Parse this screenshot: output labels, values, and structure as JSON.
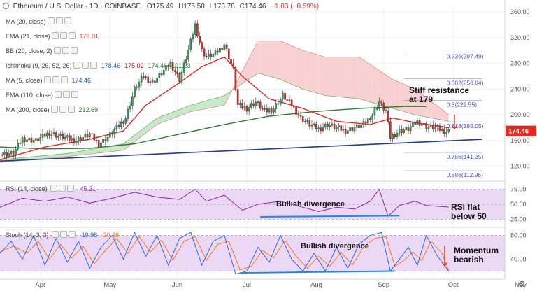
{
  "chart_data": {
    "type": "line",
    "title": "Ethereum / U.S. Dollar",
    "interval": "1D",
    "exchange": "COINBASE",
    "ohlc": {
      "open": "O175.49",
      "high": "H175.50",
      "low": "L173.78",
      "close": "C174.46",
      "change": "−1.03 (−0.59%)"
    },
    "current_price": "174.46",
    "price_axis": {
      "ticks": [
        120,
        160,
        200,
        240,
        280,
        320,
        360
      ],
      "range": [
        100,
        370
      ]
    },
    "rsi_axis": {
      "ticks": [
        25,
        50,
        75
      ],
      "range": [
        15,
        85
      ]
    },
    "stoch_axis": {
      "ticks": [
        40,
        80
      ],
      "range": [
        10,
        90
      ]
    },
    "x_axis": {
      "labels": [
        "Apr",
        "May",
        "Jun",
        "Jul",
        "Aug",
        "Sep",
        "Oct",
        "Nov"
      ]
    },
    "fib_levels": [
      {
        "ratio": "0.236",
        "value": 297.49
      },
      {
        "ratio": "0.382",
        "value": 256.04
      },
      {
        "ratio": "0.5",
        "value": 222.55
      },
      {
        "ratio": "0.618",
        "value": 189.05
      },
      {
        "ratio": "0.786",
        "value": 141.35
      },
      {
        "ratio": "0.886",
        "value": 112.96
      }
    ],
    "close_series": [
      {
        "t": 0,
        "v": 138
      },
      {
        "t": 6,
        "v": 140
      },
      {
        "t": 10,
        "v": 163
      },
      {
        "t": 16,
        "v": 160
      },
      {
        "t": 22,
        "v": 172
      },
      {
        "t": 28,
        "v": 165
      },
      {
        "t": 34,
        "v": 160
      },
      {
        "t": 40,
        "v": 170
      },
      {
        "t": 44,
        "v": 155
      },
      {
        "t": 48,
        "v": 165
      },
      {
        "t": 52,
        "v": 180
      },
      {
        "t": 56,
        "v": 195
      },
      {
        "t": 60,
        "v": 240
      },
      {
        "t": 64,
        "v": 260
      },
      {
        "t": 68,
        "v": 250
      },
      {
        "t": 72,
        "v": 265
      },
      {
        "t": 76,
        "v": 280
      },
      {
        "t": 80,
        "v": 255
      },
      {
        "t": 84,
        "v": 300
      },
      {
        "t": 87,
        "v": 340
      },
      {
        "t": 90,
        "v": 300
      },
      {
        "t": 92,
        "v": 290
      },
      {
        "t": 96,
        "v": 295
      },
      {
        "t": 100,
        "v": 310
      },
      {
        "t": 104,
        "v": 270
      },
      {
        "t": 106,
        "v": 215
      },
      {
        "t": 110,
        "v": 210
      },
      {
        "t": 114,
        "v": 220
      },
      {
        "t": 118,
        "v": 205
      },
      {
        "t": 122,
        "v": 210
      },
      {
        "t": 126,
        "v": 230
      },
      {
        "t": 130,
        "v": 215
      },
      {
        "t": 134,
        "v": 195
      },
      {
        "t": 138,
        "v": 185
      },
      {
        "t": 142,
        "v": 178
      },
      {
        "t": 146,
        "v": 185
      },
      {
        "t": 150,
        "v": 180
      },
      {
        "t": 154,
        "v": 175
      },
      {
        "t": 158,
        "v": 180
      },
      {
        "t": 162,
        "v": 185
      },
      {
        "t": 166,
        "v": 200
      },
      {
        "t": 169,
        "v": 220
      },
      {
        "t": 172,
        "v": 205
      },
      {
        "t": 174,
        "v": 165
      },
      {
        "t": 178,
        "v": 175
      },
      {
        "t": 182,
        "v": 178
      },
      {
        "t": 186,
        "v": 190
      },
      {
        "t": 190,
        "v": 182
      },
      {
        "t": 194,
        "v": 180
      },
      {
        "t": 198,
        "v": 175
      },
      {
        "t": 200,
        "v": 174.46
      }
    ],
    "series": [
      {
        "name": "EMA (21, close)",
        "values": [
          {
            "t": 0,
            "v": 130
          },
          {
            "t": 20,
            "v": 150
          },
          {
            "t": 40,
            "v": 162
          },
          {
            "t": 55,
            "v": 175
          },
          {
            "t": 65,
            "v": 215
          },
          {
            "t": 80,
            "v": 250
          },
          {
            "t": 90,
            "v": 275
          },
          {
            "t": 100,
            "v": 290
          },
          {
            "t": 108,
            "v": 260
          },
          {
            "t": 120,
            "v": 225
          },
          {
            "t": 135,
            "v": 210
          },
          {
            "t": 150,
            "v": 190
          },
          {
            "t": 165,
            "v": 185
          },
          {
            "t": 175,
            "v": 195
          },
          {
            "t": 185,
            "v": 188
          },
          {
            "t": 200,
            "v": 180
          }
        ]
      },
      {
        "name": "MA (200, close)",
        "values": [
          {
            "t": 0,
            "v": 150
          },
          {
            "t": 20,
            "v": 147
          },
          {
            "t": 40,
            "v": 148
          },
          {
            "t": 60,
            "v": 155
          },
          {
            "t": 80,
            "v": 170
          },
          {
            "t": 100,
            "v": 185
          },
          {
            "t": 120,
            "v": 198
          },
          {
            "t": 140,
            "v": 205
          },
          {
            "t": 160,
            "v": 210
          },
          {
            "t": 180,
            "v": 213
          },
          {
            "t": 190,
            "v": 213
          }
        ]
      },
      {
        "name": "Ichimoku Span A",
        "values": [
          {
            "t": 0,
            "v": 130
          },
          {
            "t": 30,
            "v": 140
          },
          {
            "t": 55,
            "v": 155
          },
          {
            "t": 70,
            "v": 195
          },
          {
            "t": 85,
            "v": 215
          },
          {
            "t": 100,
            "v": 230
          },
          {
            "t": 115,
            "v": 265
          },
          {
            "t": 125,
            "v": 255
          },
          {
            "t": 135,
            "v": 240
          },
          {
            "t": 145,
            "v": 230
          },
          {
            "t": 160,
            "v": 225
          },
          {
            "t": 175,
            "v": 210
          },
          {
            "t": 185,
            "v": 200
          },
          {
            "t": 200,
            "v": 190
          }
        ]
      },
      {
        "name": "Ichimoku Span B",
        "values": [
          {
            "t": 0,
            "v": 126
          },
          {
            "t": 30,
            "v": 135
          },
          {
            "t": 55,
            "v": 145
          },
          {
            "t": 70,
            "v": 185
          },
          {
            "t": 85,
            "v": 205
          },
          {
            "t": 100,
            "v": 215
          },
          {
            "t": 115,
            "v": 315
          },
          {
            "t": 125,
            "v": 315
          },
          {
            "t": 135,
            "v": 300
          },
          {
            "t": 145,
            "v": 290
          },
          {
            "t": 160,
            "v": 290
          },
          {
            "t": 175,
            "v": 255
          },
          {
            "t": 185,
            "v": 240
          },
          {
            "t": 200,
            "v": 200
          }
        ]
      },
      {
        "name": "Trendline",
        "values": [
          {
            "t": 0,
            "v": 128
          },
          {
            "t": 215,
            "v": 162
          }
        ]
      }
    ],
    "rsi_series": [
      {
        "t": 0,
        "v": 45
      },
      {
        "t": 10,
        "v": 60
      },
      {
        "t": 20,
        "v": 55
      },
      {
        "t": 30,
        "v": 62
      },
      {
        "t": 40,
        "v": 52
      },
      {
        "t": 50,
        "v": 60
      },
      {
        "t": 60,
        "v": 70
      },
      {
        "t": 70,
        "v": 62
      },
      {
        "t": 80,
        "v": 58
      },
      {
        "t": 87,
        "v": 75
      },
      {
        "t": 92,
        "v": 55
      },
      {
        "t": 100,
        "v": 65
      },
      {
        "t": 108,
        "v": 40
      },
      {
        "t": 115,
        "v": 50
      },
      {
        "t": 125,
        "v": 55
      },
      {
        "t": 135,
        "v": 45
      },
      {
        "t": 142,
        "v": 38
      },
      {
        "t": 150,
        "v": 45
      },
      {
        "t": 158,
        "v": 42
      },
      {
        "t": 165,
        "v": 55
      },
      {
        "t": 169,
        "v": 75
      },
      {
        "t": 173,
        "v": 30
      },
      {
        "t": 178,
        "v": 48
      },
      {
        "t": 185,
        "v": 55
      },
      {
        "t": 190,
        "v": 48
      },
      {
        "t": 200,
        "v": 45.31
      }
    ],
    "stoch_k": [
      {
        "t": 0,
        "v": 50
      },
      {
        "t": 5,
        "v": 70
      },
      {
        "t": 10,
        "v": 40
      },
      {
        "t": 15,
        "v": 80
      },
      {
        "t": 20,
        "v": 30
      },
      {
        "t": 25,
        "v": 75
      },
      {
        "t": 30,
        "v": 35
      },
      {
        "t": 35,
        "v": 70
      },
      {
        "t": 40,
        "v": 25
      },
      {
        "t": 45,
        "v": 60
      },
      {
        "t": 50,
        "v": 80
      },
      {
        "t": 55,
        "v": 40
      },
      {
        "t": 60,
        "v": 85
      },
      {
        "t": 65,
        "v": 45
      },
      {
        "t": 70,
        "v": 80
      },
      {
        "t": 75,
        "v": 30
      },
      {
        "t": 80,
        "v": 75
      },
      {
        "t": 85,
        "v": 85
      },
      {
        "t": 90,
        "v": 30
      },
      {
        "t": 95,
        "v": 70
      },
      {
        "t": 100,
        "v": 80
      },
      {
        "t": 105,
        "v": 15
      },
      {
        "t": 110,
        "v": 20
      },
      {
        "t": 115,
        "v": 60
      },
      {
        "t": 120,
        "v": 35
      },
      {
        "t": 125,
        "v": 80
      },
      {
        "t": 130,
        "v": 40
      },
      {
        "t": 135,
        "v": 20
      },
      {
        "t": 140,
        "v": 50
      },
      {
        "t": 145,
        "v": 20
      },
      {
        "t": 150,
        "v": 60
      },
      {
        "t": 155,
        "v": 25
      },
      {
        "t": 160,
        "v": 65
      },
      {
        "t": 165,
        "v": 80
      },
      {
        "t": 170,
        "v": 85
      },
      {
        "t": 174,
        "v": 20
      },
      {
        "t": 178,
        "v": 40
      },
      {
        "t": 182,
        "v": 60
      },
      {
        "t": 186,
        "v": 30
      },
      {
        "t": 190,
        "v": 80
      },
      {
        "t": 195,
        "v": 45
      },
      {
        "t": 200,
        "v": 19.98
      }
    ],
    "stoch_d": [
      {
        "t": 0,
        "v": 52
      },
      {
        "t": 6,
        "v": 62
      },
      {
        "t": 12,
        "v": 50
      },
      {
        "t": 17,
        "v": 70
      },
      {
        "t": 22,
        "v": 40
      },
      {
        "t": 27,
        "v": 65
      },
      {
        "t": 32,
        "v": 42
      },
      {
        "t": 37,
        "v": 62
      },
      {
        "t": 42,
        "v": 32
      },
      {
        "t": 47,
        "v": 55
      },
      {
        "t": 52,
        "v": 75
      },
      {
        "t": 57,
        "v": 50
      },
      {
        "t": 62,
        "v": 78
      },
      {
        "t": 67,
        "v": 52
      },
      {
        "t": 72,
        "v": 72
      },
      {
        "t": 77,
        "v": 38
      },
      {
        "t": 82,
        "v": 70
      },
      {
        "t": 87,
        "v": 78
      },
      {
        "t": 92,
        "v": 38
      },
      {
        "t": 97,
        "v": 65
      },
      {
        "t": 102,
        "v": 70
      },
      {
        "t": 107,
        "v": 22
      },
      {
        "t": 112,
        "v": 28
      },
      {
        "t": 117,
        "v": 55
      },
      {
        "t": 122,
        "v": 42
      },
      {
        "t": 127,
        "v": 72
      },
      {
        "t": 132,
        "v": 45
      },
      {
        "t": 137,
        "v": 25
      },
      {
        "t": 142,
        "v": 45
      },
      {
        "t": 147,
        "v": 28
      },
      {
        "t": 152,
        "v": 52
      },
      {
        "t": 157,
        "v": 30
      },
      {
        "t": 162,
        "v": 60
      },
      {
        "t": 167,
        "v": 75
      },
      {
        "t": 172,
        "v": 78
      },
      {
        "t": 176,
        "v": 28
      },
      {
        "t": 180,
        "v": 38
      },
      {
        "t": 184,
        "v": 52
      },
      {
        "t": 188,
        "v": 38
      },
      {
        "t": 192,
        "v": 70
      },
      {
        "t": 197,
        "v": 50
      },
      {
        "t": 200,
        "v": 20.26
      }
    ]
  },
  "indicators": [
    {
      "name": "MA (20, close)",
      "value": "",
      "color": "#8e8e8e"
    },
    {
      "name": "EMA (21, close)",
      "value": "179.01",
      "color": "#e8281e"
    },
    {
      "name": "BB (20, close, 2)",
      "value": "",
      "color": "#8e8e8e"
    },
    {
      "name": "Ichimoku (9, 26, 52, 26)",
      "value": "",
      "values": [
        "178.46",
        "175.02",
        "174.46",
        "191.23"
      ],
      "value_colors": [
        "#1e5ed8",
        "#a0161e",
        "#2e7d32",
        "#2e7d32"
      ]
    },
    {
      "name": "MA (5, close)",
      "value": "174.46",
      "color": "#1e5ed8"
    },
    {
      "name": "EMA (110, close)",
      "value": "",
      "color": "#8e8e8e"
    },
    {
      "name": "MA (200, close)",
      "value": "212.69",
      "color": "#2e7d32"
    }
  ],
  "rsi": {
    "label": "RSI (14, close)",
    "value": "45.31",
    "color": "#8e24aa"
  },
  "stoch": {
    "label": "Stoch (14, 3, 3)",
    "k": "19.98",
    "d": "20.26",
    "k_color": "#1e5ed8",
    "d_color": "#ff6d00"
  },
  "annotations": {
    "stiff_resistance_1": "Stiff resistance",
    "stiff_resistance_2": "at 179",
    "rsi_divergence": "Bullish divergence",
    "rsi_flat_1": "RSI flat",
    "rsi_flat_2": "below 50",
    "stoch_divergence": "Bullish divergence",
    "momentum_1": "Momentum",
    "momentum_2": "bearish"
  },
  "colors": {
    "ema21": "#e8281e",
    "ma200": "#2e7d32",
    "trendline": "#1f3f9a",
    "fib": "#4a56c8",
    "price_tag": "#e8281e",
    "rsi": "#8e24aa",
    "stoch_k": "#1e5ed8",
    "stoch_d": "#ff6d00",
    "osc_bg": "#ead8f4",
    "cloud_bull": "#bfe3bf",
    "cloud_bear": "#f6c9c9",
    "arrow": "#e8281e",
    "divergence_line": "#1e88e5"
  }
}
